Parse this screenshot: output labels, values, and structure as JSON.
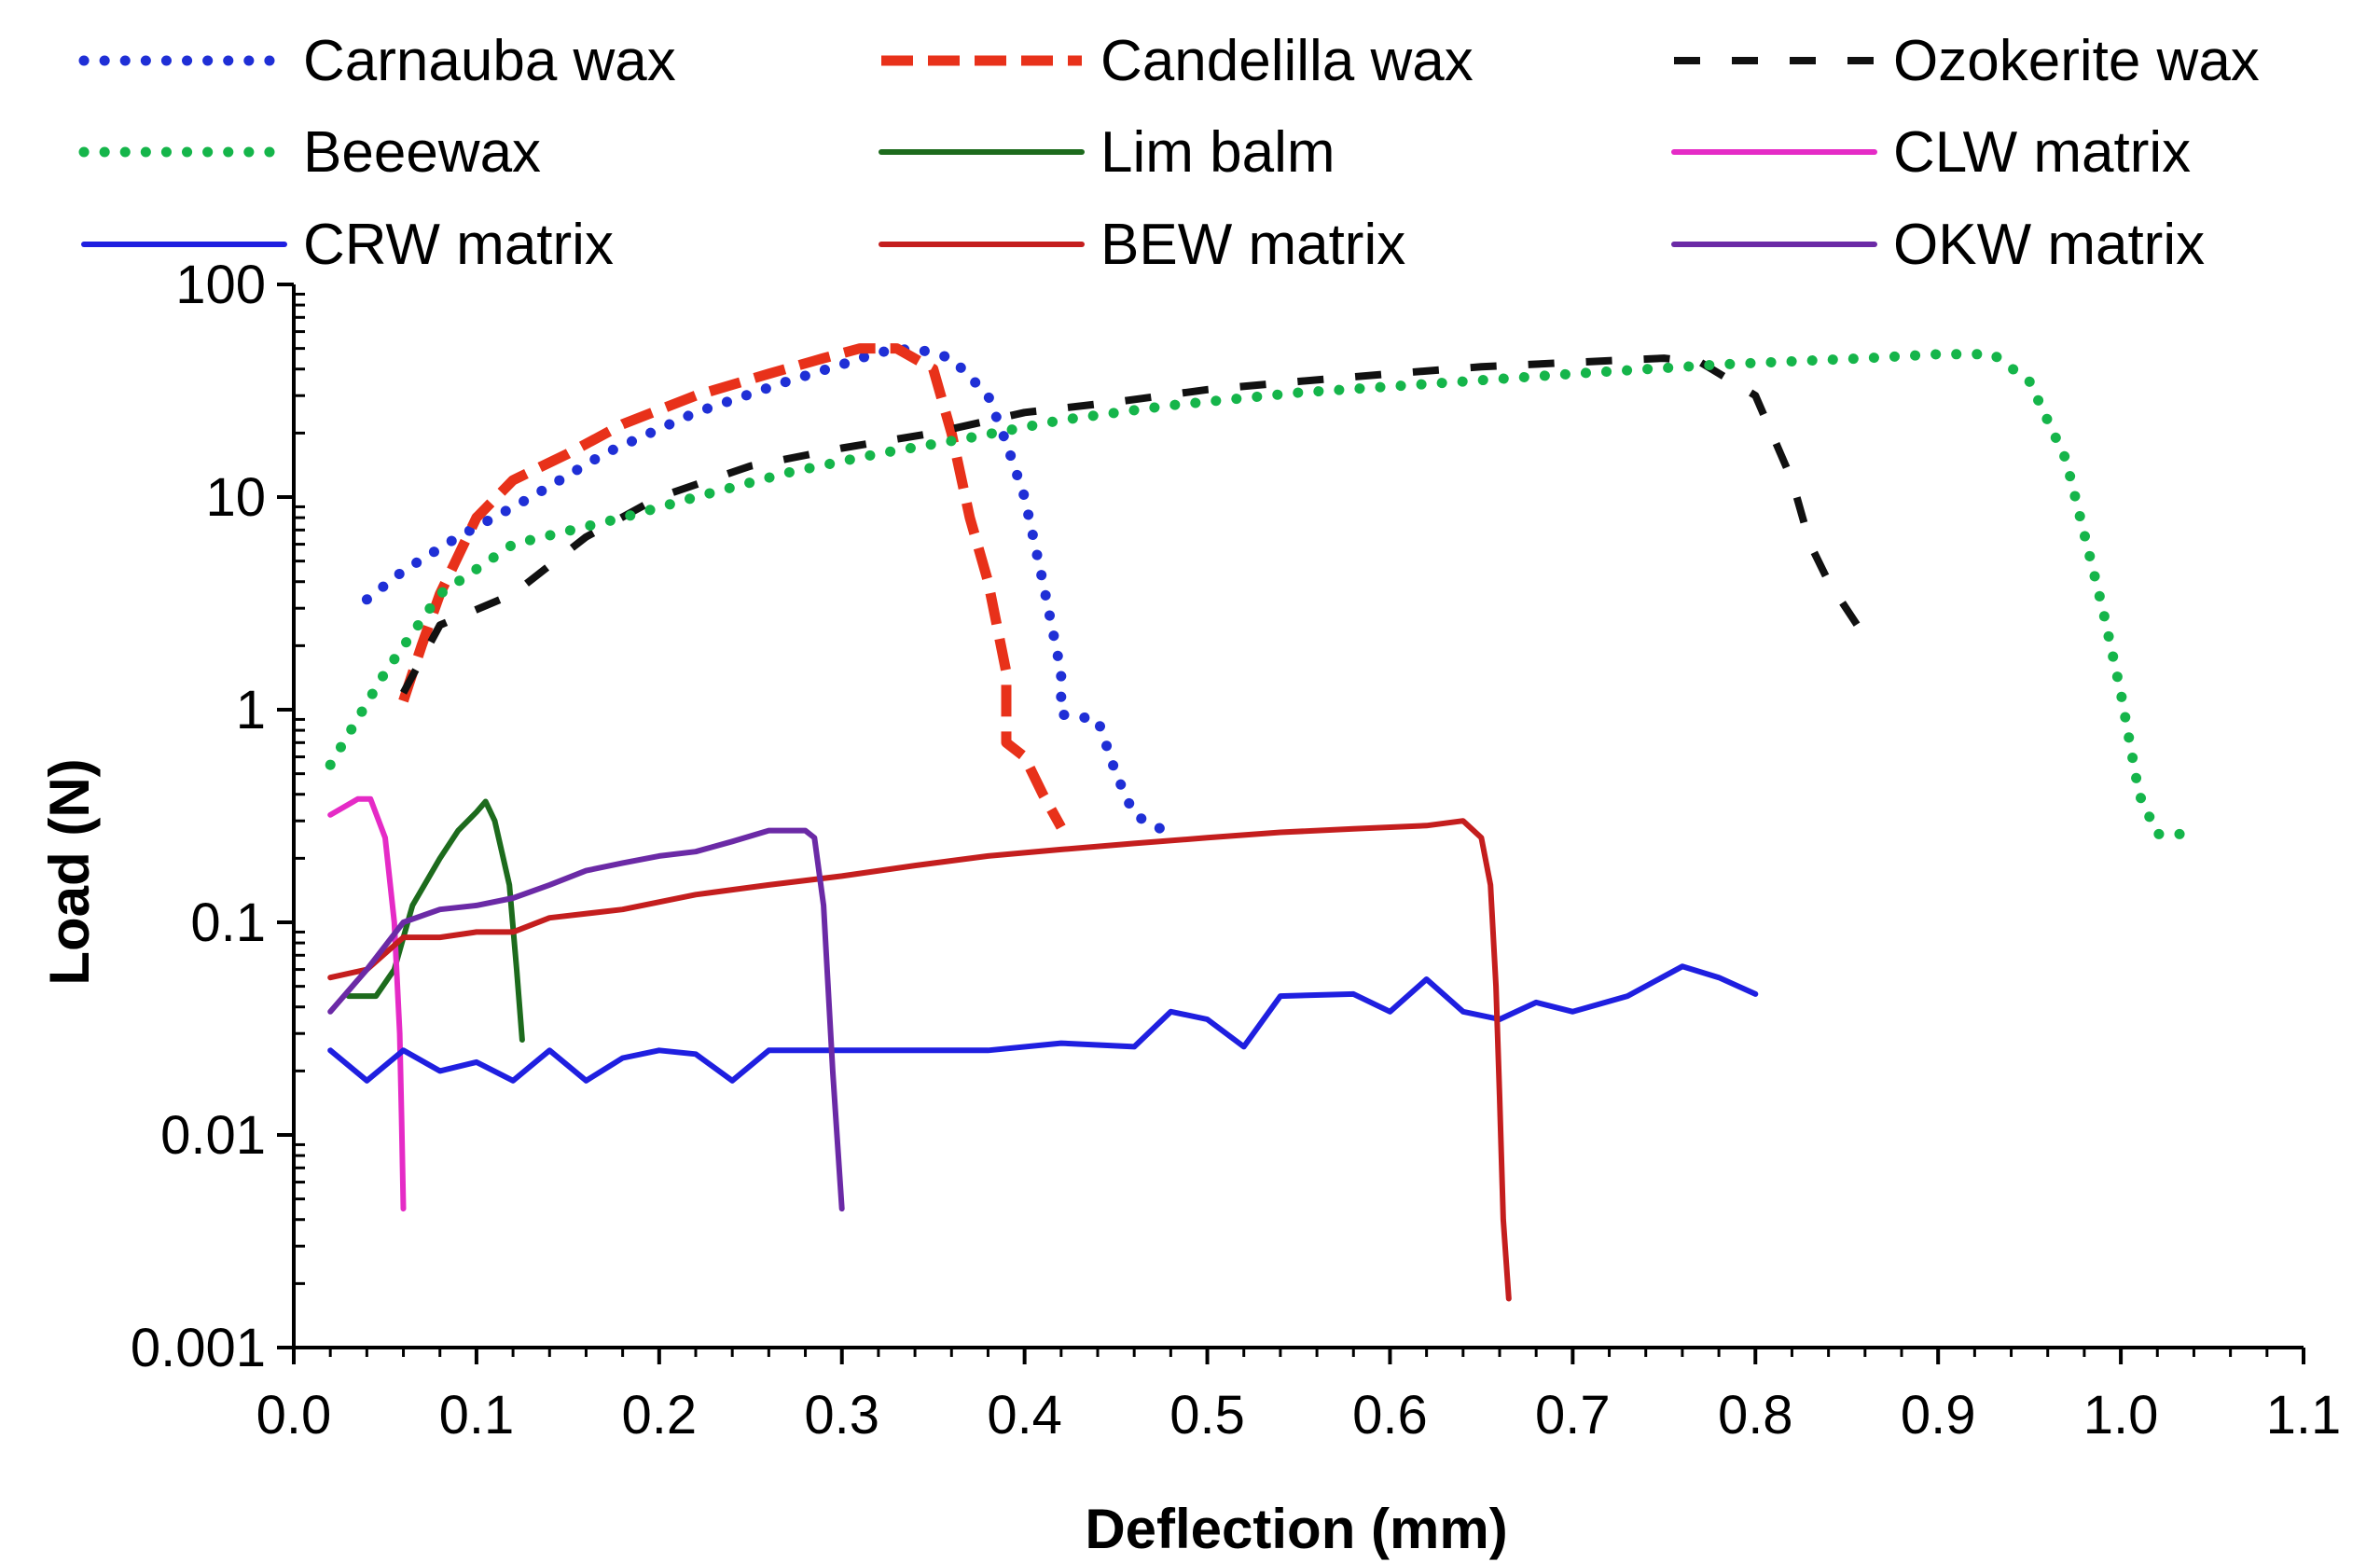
{
  "chart_data": {
    "type": "line",
    "title": "",
    "xlabel": "Deflection (mm)",
    "ylabel": "Load (N)",
    "xlim": [
      0.0,
      1.1
    ],
    "ylim": [
      0.001,
      100
    ],
    "yscale": "log",
    "grid": false,
    "legend_position": "top",
    "x_ticks": [
      "0.0",
      "0.1",
      "0.2",
      "0.3",
      "0.4",
      "0.5",
      "0.6",
      "0.7",
      "0.8",
      "0.9",
      "1.0",
      "1.1"
    ],
    "y_ticks": [
      "0.001",
      "0.01",
      "0.1",
      "1",
      "10",
      "100"
    ],
    "series": [
      {
        "name": "Carnauba wax",
        "color": "#1f2fd6",
        "style": "dotted",
        "points": [
          [
            0.04,
            3.3
          ],
          [
            0.06,
            4.5
          ],
          [
            0.09,
            6.5
          ],
          [
            0.13,
            10
          ],
          [
            0.17,
            16
          ],
          [
            0.22,
            25
          ],
          [
            0.27,
            35
          ],
          [
            0.3,
            42
          ],
          [
            0.32,
            48
          ],
          [
            0.34,
            50
          ],
          [
            0.36,
            45
          ],
          [
            0.38,
            30
          ],
          [
            0.39,
            18
          ],
          [
            0.4,
            10
          ],
          [
            0.41,
            4
          ],
          [
            0.42,
            1.5
          ],
          [
            0.42,
            0.95
          ],
          [
            0.44,
            0.9
          ],
          [
            0.45,
            0.5
          ],
          [
            0.46,
            0.32
          ],
          [
            0.48,
            0.26
          ]
        ]
      },
      {
        "name": "Candelilla wax",
        "color": "#e8311a",
        "style": "dashed",
        "points": [
          [
            0.06,
            1.1
          ],
          [
            0.07,
            2
          ],
          [
            0.08,
            3.5
          ],
          [
            0.1,
            8
          ],
          [
            0.12,
            12
          ],
          [
            0.15,
            16
          ],
          [
            0.18,
            22
          ],
          [
            0.22,
            30
          ],
          [
            0.26,
            38
          ],
          [
            0.29,
            45
          ],
          [
            0.31,
            50
          ],
          [
            0.33,
            50
          ],
          [
            0.35,
            40
          ],
          [
            0.36,
            20
          ],
          [
            0.37,
            8
          ],
          [
            0.38,
            4
          ],
          [
            0.39,
            1.5
          ],
          [
            0.39,
            0.7
          ],
          [
            0.4,
            0.6
          ],
          [
            0.41,
            0.4
          ],
          [
            0.42,
            0.28
          ]
        ]
      },
      {
        "name": "Ozokerite wax",
        "color": "#111111",
        "style": "longdash",
        "points": [
          [
            0.06,
            1.2
          ],
          [
            0.08,
            2.5
          ],
          [
            0.12,
            3.5
          ],
          [
            0.16,
            6.5
          ],
          [
            0.2,
            10
          ],
          [
            0.25,
            14
          ],
          [
            0.3,
            17
          ],
          [
            0.35,
            20
          ],
          [
            0.4,
            25
          ],
          [
            0.45,
            28
          ],
          [
            0.5,
            32
          ],
          [
            0.55,
            35
          ],
          [
            0.6,
            38
          ],
          [
            0.65,
            41
          ],
          [
            0.7,
            43
          ],
          [
            0.75,
            45
          ],
          [
            0.77,
            43
          ],
          [
            0.8,
            30
          ],
          [
            0.82,
            12
          ],
          [
            0.83,
            6
          ],
          [
            0.84,
            4
          ],
          [
            0.86,
            2.2
          ]
        ]
      },
      {
        "name": "Beeewax",
        "color": "#15b54a",
        "style": "dotted",
        "points": [
          [
            0.02,
            0.55
          ],
          [
            0.05,
            1.5
          ],
          [
            0.08,
            3.5
          ],
          [
            0.12,
            6
          ],
          [
            0.18,
            8
          ],
          [
            0.22,
            10
          ],
          [
            0.27,
            13
          ],
          [
            0.32,
            16
          ],
          [
            0.37,
            19
          ],
          [
            0.42,
            23
          ],
          [
            0.48,
            27
          ],
          [
            0.55,
            31
          ],
          [
            0.62,
            34
          ],
          [
            0.7,
            38
          ],
          [
            0.78,
            42
          ],
          [
            0.86,
            45
          ],
          [
            0.9,
            47
          ],
          [
            0.93,
            47
          ],
          [
            0.95,
            35
          ],
          [
            0.97,
            15
          ],
          [
            0.99,
            3
          ],
          [
            1.0,
            1.2
          ],
          [
            1.01,
            0.4
          ],
          [
            1.02,
            0.26
          ],
          [
            1.04,
            0.26
          ]
        ]
      },
      {
        "name": "Lim balm",
        "color": "#1d6b1d",
        "style": "solid",
        "points": [
          [
            0.03,
            0.045
          ],
          [
            0.045,
            0.045
          ],
          [
            0.055,
            0.06
          ],
          [
            0.065,
            0.12
          ],
          [
            0.08,
            0.2
          ],
          [
            0.09,
            0.27
          ],
          [
            0.1,
            0.33
          ],
          [
            0.105,
            0.37
          ],
          [
            0.11,
            0.3
          ],
          [
            0.118,
            0.15
          ],
          [
            0.122,
            0.06
          ],
          [
            0.125,
            0.028
          ]
        ]
      },
      {
        "name": "CLW matrix",
        "color": "#e52bc6",
        "style": "solid",
        "points": [
          [
            0.02,
            0.32
          ],
          [
            0.035,
            0.38
          ],
          [
            0.042,
            0.38
          ],
          [
            0.05,
            0.25
          ],
          [
            0.055,
            0.1
          ],
          [
            0.058,
            0.03
          ],
          [
            0.059,
            0.012
          ],
          [
            0.06,
            0.0045
          ]
        ]
      },
      {
        "name": "CRW matrix",
        "color": "#1f1fe0",
        "style": "solid",
        "points": [
          [
            0.02,
            0.025
          ],
          [
            0.04,
            0.018
          ],
          [
            0.06,
            0.025
          ],
          [
            0.08,
            0.02
          ],
          [
            0.1,
            0.022
          ],
          [
            0.12,
            0.018
          ],
          [
            0.14,
            0.025
          ],
          [
            0.16,
            0.018
          ],
          [
            0.18,
            0.023
          ],
          [
            0.2,
            0.025
          ],
          [
            0.22,
            0.024
          ],
          [
            0.24,
            0.018
          ],
          [
            0.26,
            0.025
          ],
          [
            0.3,
            0.025
          ],
          [
            0.34,
            0.025
          ],
          [
            0.38,
            0.025
          ],
          [
            0.42,
            0.027
          ],
          [
            0.46,
            0.026
          ],
          [
            0.48,
            0.038
          ],
          [
            0.5,
            0.035
          ],
          [
            0.52,
            0.026
          ],
          [
            0.54,
            0.045
          ],
          [
            0.58,
            0.046
          ],
          [
            0.6,
            0.038
          ],
          [
            0.62,
            0.054
          ],
          [
            0.64,
            0.038
          ],
          [
            0.66,
            0.035
          ],
          [
            0.68,
            0.042
          ],
          [
            0.7,
            0.038
          ],
          [
            0.73,
            0.045
          ],
          [
            0.76,
            0.062
          ],
          [
            0.78,
            0.055
          ],
          [
            0.8,
            0.046
          ]
        ]
      },
      {
        "name": "BEW matrix",
        "color": "#c41e1e",
        "style": "solid",
        "points": [
          [
            0.02,
            0.055
          ],
          [
            0.04,
            0.06
          ],
          [
            0.06,
            0.085
          ],
          [
            0.08,
            0.085
          ],
          [
            0.1,
            0.09
          ],
          [
            0.12,
            0.09
          ],
          [
            0.14,
            0.105
          ],
          [
            0.18,
            0.115
          ],
          [
            0.22,
            0.135
          ],
          [
            0.26,
            0.15
          ],
          [
            0.3,
            0.165
          ],
          [
            0.34,
            0.185
          ],
          [
            0.38,
            0.205
          ],
          [
            0.42,
            0.22
          ],
          [
            0.46,
            0.235
          ],
          [
            0.5,
            0.25
          ],
          [
            0.54,
            0.265
          ],
          [
            0.58,
            0.275
          ],
          [
            0.62,
            0.285
          ],
          [
            0.64,
            0.3
          ],
          [
            0.65,
            0.25
          ],
          [
            0.655,
            0.15
          ],
          [
            0.658,
            0.05
          ],
          [
            0.66,
            0.015
          ],
          [
            0.662,
            0.004
          ],
          [
            0.665,
            0.0017
          ]
        ]
      },
      {
        "name": "OKW matrix",
        "color": "#6b2aa6",
        "style": "solid",
        "points": [
          [
            0.02,
            0.038
          ],
          [
            0.04,
            0.06
          ],
          [
            0.06,
            0.1
          ],
          [
            0.08,
            0.115
          ],
          [
            0.1,
            0.12
          ],
          [
            0.12,
            0.13
          ],
          [
            0.14,
            0.15
          ],
          [
            0.16,
            0.175
          ],
          [
            0.18,
            0.19
          ],
          [
            0.2,
            0.205
          ],
          [
            0.22,
            0.215
          ],
          [
            0.24,
            0.24
          ],
          [
            0.26,
            0.27
          ],
          [
            0.28,
            0.27
          ],
          [
            0.285,
            0.25
          ],
          [
            0.29,
            0.12
          ],
          [
            0.295,
            0.02
          ],
          [
            0.3,
            0.0045
          ]
        ]
      }
    ]
  }
}
